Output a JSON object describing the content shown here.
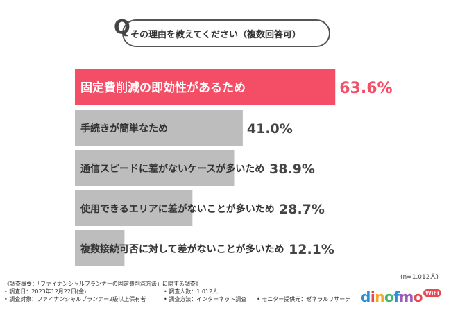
{
  "question": {
    "letter": "Q",
    "text": "その理由を教えてください（複数回答可）"
  },
  "chart_data": {
    "type": "bar",
    "orientation": "horizontal",
    "value_suffix": "%",
    "highlight_color": "#f44d66",
    "default_color": "#bdbdbd",
    "categories": [
      "固定費削減の即効性があるため",
      "手続きが簡単なため",
      "通信スピードに差がないケースが多いため",
      "使用できるエリアに差がないことが多いため",
      "複数接続可否に対して差がないことが多いため"
    ],
    "values": [
      63.6,
      41.0,
      38.9,
      28.7,
      12.1
    ],
    "highlight_index": 0
  },
  "sample_size": "(n=1,012人)",
  "footer": {
    "survey_title": "《調査概要：「ファイナンシャルプランナーの固定費削減方法」に関する調査》",
    "date": "• 調査日：2023年12月22日(金)",
    "respondents": "• 調査人数：1,012人",
    "target": "• 調査対象：ファイナンシャルプランナー2級以上保有者",
    "method": "• 調査方法：インターネット調査",
    "provider": "• モニター提供元：ゼネラルリサーチ"
  },
  "logo": {
    "letters": [
      "d",
      "i",
      "n",
      "o",
      "f",
      "m",
      "o"
    ],
    "badge": "WiFi"
  }
}
